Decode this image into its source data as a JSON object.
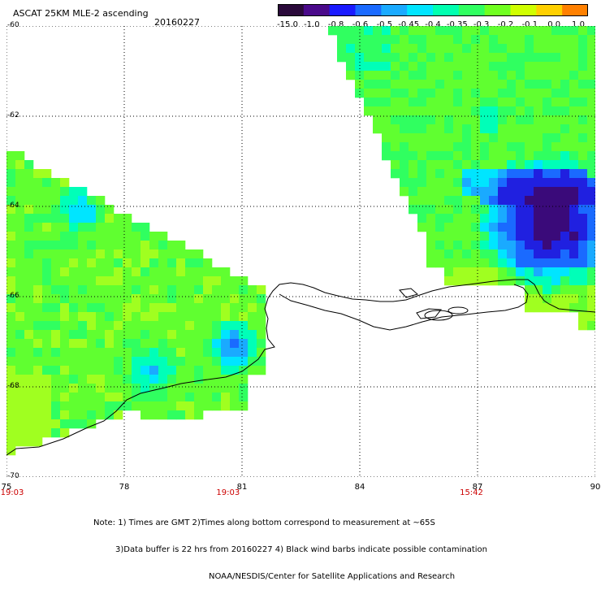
{
  "header": {
    "title": "ASCAT 25KM MLE-2 ascending",
    "date": "20160227"
  },
  "colorbar": {
    "ticks": [
      "-15.0",
      "-1.0",
      "-0.8",
      "-0.6",
      "-0.5",
      "-0.45",
      "-0.4",
      "-0.35",
      "-0.3",
      "-0.2",
      "-0.1",
      "0.0",
      "1.0"
    ],
    "colors": [
      "#2a0a3a",
      "#4a0a8a",
      "#1a1aff",
      "#1a6aff",
      "#1aaaff",
      "#00e5ff",
      "#00ffb0",
      "#30ff60",
      "#70ff20",
      "#d0ff00",
      "#ffd000",
      "#ff8000",
      "#ff2010"
    ]
  },
  "map": {
    "lat_labels": [
      "-60",
      "-62",
      "-64",
      "-66",
      "-68",
      "-70"
    ],
    "lon_labels": [
      "75",
      "78",
      "81",
      "84",
      "87",
      "90"
    ],
    "time_labels": [
      {
        "text": "19:03",
        "lon": 75
      },
      {
        "text": "19:03",
        "lon": 80.5
      },
      {
        "text": "15:42",
        "lon": 86.7
      }
    ]
  },
  "footer": {
    "note1": "Note: 1) Times are GMT 2)Times along bottom correspond to measurement at ~65S",
    "note2": "3)Data buffer is 22 hrs from 20160227 4) Black wind barbs indicate possible contamination",
    "note3": "NOAA/NESDIS/Center for Satellite Applications and Research"
  }
}
